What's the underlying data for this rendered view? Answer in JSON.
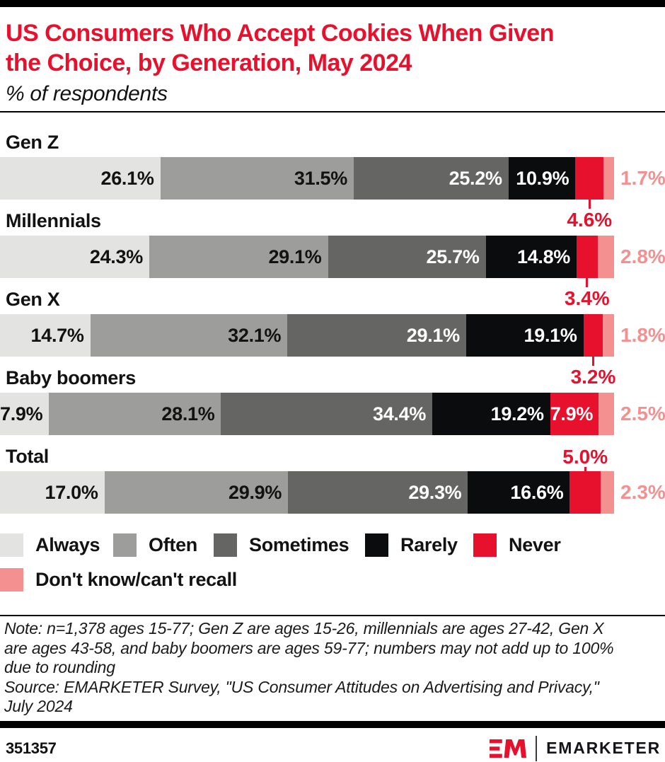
{
  "header": {
    "title_line1": "US Consumers Who Accept Cookies When Given",
    "title_line2": "the Choice, by Generation, May 2024",
    "subtitle": "% of respondents"
  },
  "chart_data": {
    "type": "bar",
    "stacked": true,
    "orientation": "horizontal",
    "title": "US Consumers Who Accept Cookies When Given the Choice, by Generation, May 2024",
    "subtitle": "% of respondents",
    "value_suffix": "%",
    "xlim": [
      0,
      100
    ],
    "legend_position": "bottom",
    "categories": [
      "Gen Z",
      "Millennials",
      "Gen X",
      "Baby boomers",
      "Total"
    ],
    "series": [
      {
        "name": "Always",
        "color": "#e3e3e1",
        "values": [
          26.1,
          24.3,
          14.7,
          7.9,
          17.0
        ]
      },
      {
        "name": "Often",
        "color": "#9d9d9b",
        "values": [
          31.5,
          29.1,
          32.1,
          28.1,
          29.9
        ]
      },
      {
        "name": "Sometimes",
        "color": "#656563",
        "values": [
          25.2,
          25.7,
          29.1,
          34.4,
          29.3
        ]
      },
      {
        "name": "Rarely",
        "color": "#0b0c0e",
        "values": [
          10.9,
          14.8,
          19.1,
          19.2,
          16.6
        ]
      },
      {
        "name": "Never",
        "color": "#e8112d",
        "values": [
          4.6,
          3.4,
          3.2,
          7.9,
          5.0
        ]
      },
      {
        "name": "Don't know/can't recall",
        "color": "#f4908f",
        "values": [
          1.7,
          2.8,
          1.8,
          2.5,
          2.3
        ]
      }
    ],
    "never_label_placement": [
      "below",
      "below",
      "below",
      "inside",
      "above"
    ],
    "accent_red": "#e8112d",
    "accent_pink": "#f4908f"
  },
  "note": {
    "lines": [
      "Note: n=1,378 ages 15-77; Gen Z are ages 15-26, millennials are ages 27-42, Gen X",
      "are ages 43-58, and baby boomers are ages 59-77; numbers may not add up to 100%",
      "due to rounding"
    ]
  },
  "source": {
    "lines": [
      "Source: EMARKETER Survey, \"US Consumer Attitudes on Advertising and Privacy,\"",
      "July 2024"
    ]
  },
  "footer": {
    "chart_id": "351357",
    "brand": "EMARKETER",
    "monogram": "EM"
  }
}
